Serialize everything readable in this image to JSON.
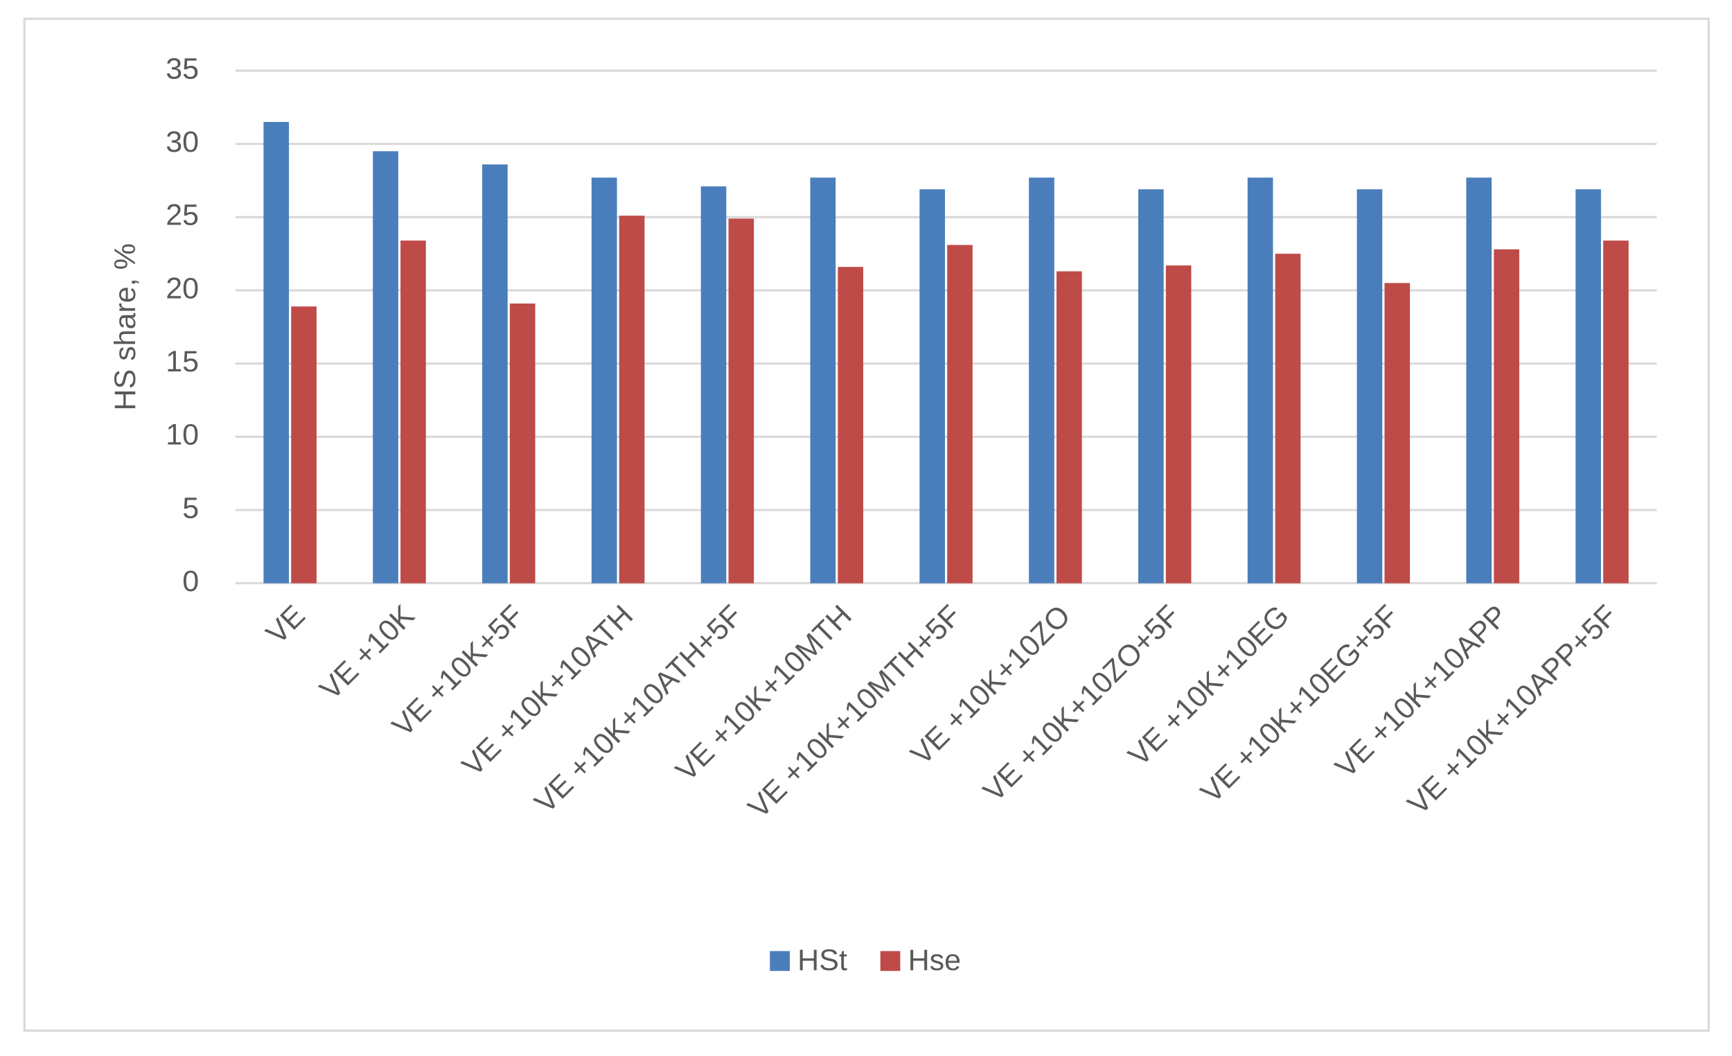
{
  "chart_data": {
    "type": "bar",
    "y_label": "HS share, %",
    "categories": [
      "VE",
      "VE +10K",
      "VE +10K+5F",
      "VE +10K+10ATH",
      "VE +10K+10ATH+5F",
      "VE +10K+10MTH",
      "VE +10K+10MTH+5F",
      "VE +10K+10ZO",
      "VE +10K+10ZO+5F",
      "VE +10K+10EG",
      "VE +10K+10EG+5F",
      "VE +10K+10APP",
      "VE +10K+10APP+5F"
    ],
    "series": [
      {
        "name": "HSt",
        "color": "#4a7ebb",
        "values": [
          31.5,
          29.5,
          28.6,
          27.7,
          27.1,
          27.7,
          26.9,
          27.7,
          26.9,
          27.7,
          26.9,
          27.7,
          26.9
        ]
      },
      {
        "name": "Hse",
        "color": "#be4b48",
        "values": [
          18.9,
          23.4,
          19.1,
          25.1,
          24.9,
          21.6,
          23.1,
          21.3,
          21.7,
          22.5,
          20.5,
          22.8,
          23.4
        ]
      }
    ],
    "ylim": [
      0,
      35
    ],
    "yticks": [
      0,
      5,
      10,
      15,
      20,
      25,
      30,
      35
    ],
    "grid": true,
    "legend": "bottom"
  }
}
